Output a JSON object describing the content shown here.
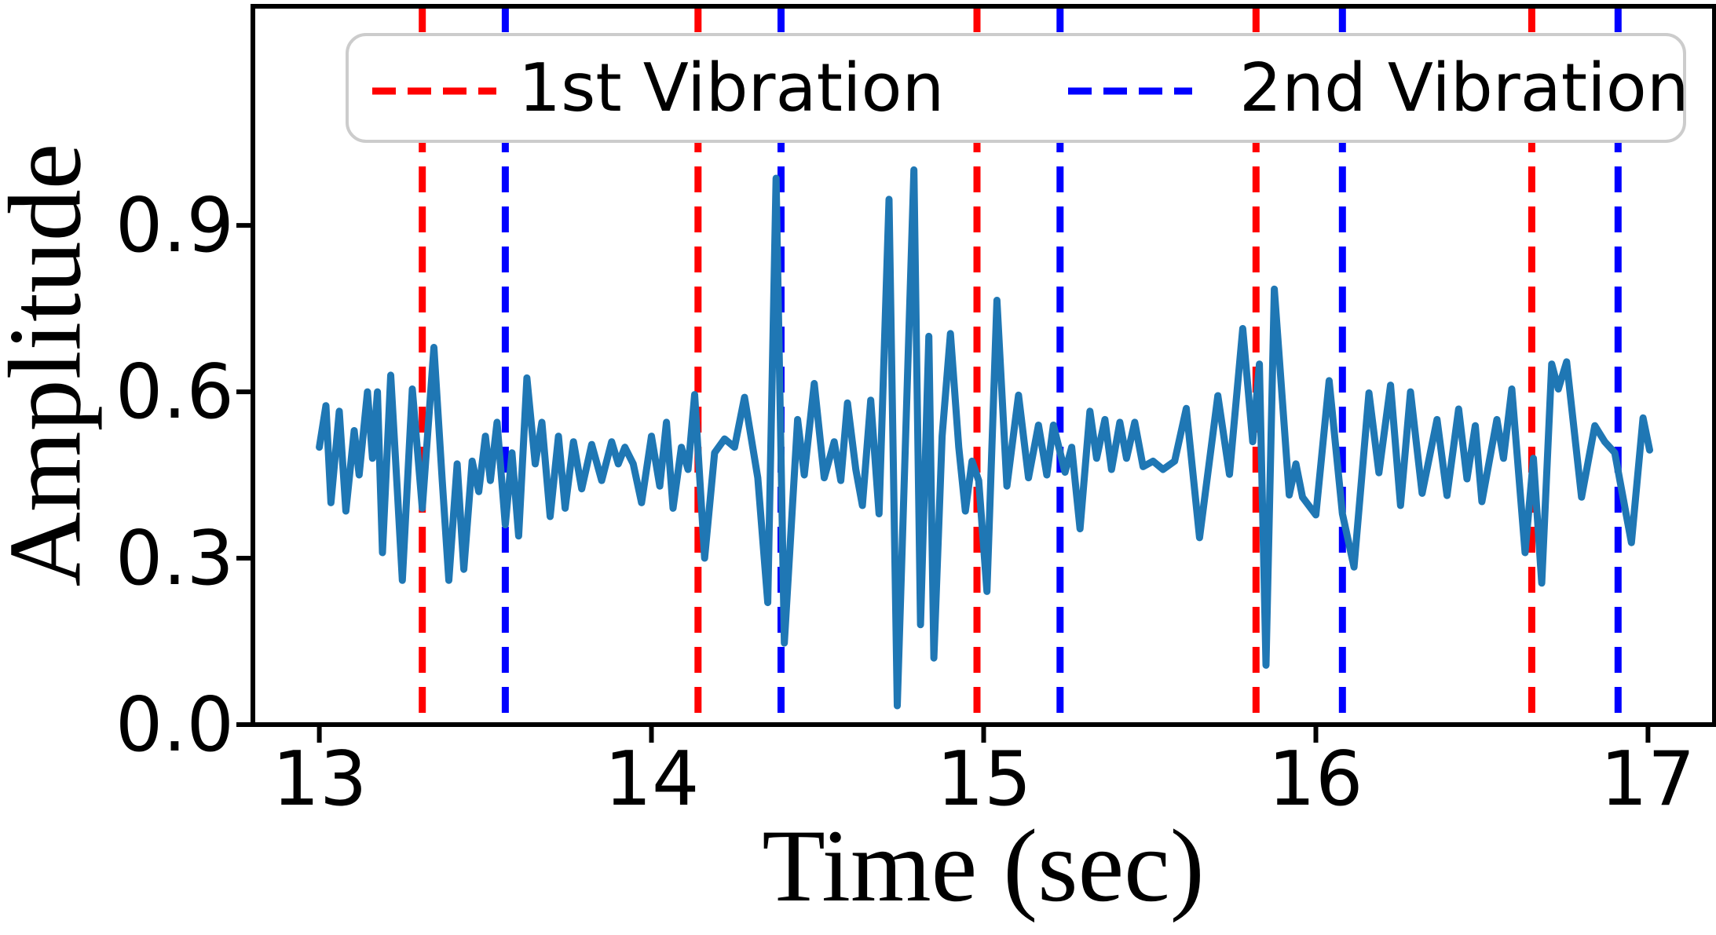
{
  "figure": {
    "background": "#ffffff",
    "text_color": "#000000",
    "spine_color": "#000000"
  },
  "legend": {
    "position": "upper center",
    "border_color": "#cccccc",
    "entries": [
      {
        "label": "1st Vibration",
        "color": "#ff0000"
      },
      {
        "label": "2nd Vibration",
        "color": "#0000ff"
      }
    ]
  },
  "chart_data": {
    "type": "line",
    "title": "",
    "xlabel": "Time (sec)",
    "ylabel": "Amplitude",
    "xlim": [
      12.8,
      17.2
    ],
    "ylim": [
      0,
      1.295
    ],
    "xticks": [
      13,
      14,
      15,
      16,
      17
    ],
    "xticklabels": [
      "13",
      "14",
      "15",
      "16",
      "17"
    ],
    "yticks": [
      0.0,
      0.3,
      0.6,
      0.9
    ],
    "yticklabels": [
      "0.0",
      "0.3",
      "0.6",
      "0.9"
    ],
    "grid": false,
    "signal_color": "#1f77b4",
    "vlines": [
      {
        "name": "1st Vibration",
        "color": "#ff0000",
        "times": [
          13.31,
          14.14,
          14.98,
          15.82,
          16.65
        ]
      },
      {
        "name": "2nd Vibration",
        "color": "#0000ff",
        "times": [
          13.56,
          14.39,
          15.23,
          16.08,
          16.91
        ]
      }
    ],
    "series": [
      {
        "name": "signal",
        "points": [
          [
            13.0,
            0.5
          ],
          [
            13.02,
            0.575
          ],
          [
            13.035,
            0.4
          ],
          [
            13.06,
            0.565
          ],
          [
            13.08,
            0.385
          ],
          [
            13.105,
            0.53
          ],
          [
            13.12,
            0.45
          ],
          [
            13.145,
            0.6
          ],
          [
            13.16,
            0.48
          ],
          [
            13.175,
            0.6
          ],
          [
            13.19,
            0.31
          ],
          [
            13.215,
            0.63
          ],
          [
            13.235,
            0.42
          ],
          [
            13.25,
            0.26
          ],
          [
            13.28,
            0.605
          ],
          [
            13.31,
            0.39
          ],
          [
            13.345,
            0.68
          ],
          [
            13.37,
            0.44
          ],
          [
            13.39,
            0.26
          ],
          [
            13.415,
            0.47
          ],
          [
            13.435,
            0.28
          ],
          [
            13.46,
            0.475
          ],
          [
            13.48,
            0.42
          ],
          [
            13.5,
            0.52
          ],
          [
            13.515,
            0.44
          ],
          [
            13.535,
            0.545
          ],
          [
            13.56,
            0.36
          ],
          [
            13.58,
            0.49
          ],
          [
            13.6,
            0.34
          ],
          [
            13.625,
            0.625
          ],
          [
            13.65,
            0.47
          ],
          [
            13.67,
            0.545
          ],
          [
            13.695,
            0.375
          ],
          [
            13.72,
            0.52
          ],
          [
            13.74,
            0.39
          ],
          [
            13.765,
            0.51
          ],
          [
            13.79,
            0.425
          ],
          [
            13.82,
            0.505
          ],
          [
            13.85,
            0.44
          ],
          [
            13.88,
            0.51
          ],
          [
            13.9,
            0.47
          ],
          [
            13.92,
            0.5
          ],
          [
            13.945,
            0.47
          ],
          [
            13.97,
            0.4
          ],
          [
            14.0,
            0.52
          ],
          [
            14.025,
            0.43
          ],
          [
            14.045,
            0.545
          ],
          [
            14.065,
            0.39
          ],
          [
            14.09,
            0.5
          ],
          [
            14.11,
            0.46
          ],
          [
            14.13,
            0.595
          ],
          [
            14.16,
            0.3
          ],
          [
            14.19,
            0.49
          ],
          [
            14.22,
            0.515
          ],
          [
            14.25,
            0.5
          ],
          [
            14.28,
            0.59
          ],
          [
            14.32,
            0.445
          ],
          [
            14.35,
            0.22
          ],
          [
            14.375,
            0.985
          ],
          [
            14.4,
            0.147
          ],
          [
            14.425,
            0.4
          ],
          [
            14.44,
            0.55
          ],
          [
            14.46,
            0.45
          ],
          [
            14.49,
            0.615
          ],
          [
            14.52,
            0.445
          ],
          [
            14.55,
            0.51
          ],
          [
            14.57,
            0.44
          ],
          [
            14.59,
            0.58
          ],
          [
            14.615,
            0.46
          ],
          [
            14.635,
            0.395
          ],
          [
            14.66,
            0.585
          ],
          [
            14.685,
            0.38
          ],
          [
            14.715,
            0.947
          ],
          [
            14.74,
            0.034
          ],
          [
            14.79,
            1.0
          ],
          [
            14.81,
            0.18
          ],
          [
            14.835,
            0.7
          ],
          [
            14.85,
            0.12
          ],
          [
            14.875,
            0.52
          ],
          [
            14.9,
            0.705
          ],
          [
            14.925,
            0.5
          ],
          [
            14.945,
            0.385
          ],
          [
            14.965,
            0.475
          ],
          [
            14.985,
            0.44
          ],
          [
            15.01,
            0.24
          ],
          [
            15.04,
            0.765
          ],
          [
            15.07,
            0.43
          ],
          [
            15.105,
            0.594
          ],
          [
            15.135,
            0.445
          ],
          [
            15.165,
            0.54
          ],
          [
            15.19,
            0.45
          ],
          [
            15.21,
            0.54
          ],
          [
            15.245,
            0.455
          ],
          [
            15.265,
            0.5
          ],
          [
            15.29,
            0.353
          ],
          [
            15.32,
            0.565
          ],
          [
            15.34,
            0.48
          ],
          [
            15.365,
            0.55
          ],
          [
            15.385,
            0.46
          ],
          [
            15.41,
            0.545
          ],
          [
            15.43,
            0.48
          ],
          [
            15.455,
            0.545
          ],
          [
            15.48,
            0.465
          ],
          [
            15.51,
            0.475
          ],
          [
            15.54,
            0.46
          ],
          [
            15.575,
            0.475
          ],
          [
            15.61,
            0.57
          ],
          [
            15.65,
            0.337
          ],
          [
            15.705,
            0.593
          ],
          [
            15.74,
            0.451
          ],
          [
            15.78,
            0.714
          ],
          [
            15.81,
            0.51
          ],
          [
            15.83,
            0.65
          ],
          [
            15.85,
            0.107
          ],
          [
            15.875,
            0.785
          ],
          [
            15.92,
            0.414
          ],
          [
            15.94,
            0.47
          ],
          [
            15.96,
            0.41
          ],
          [
            16.0,
            0.378
          ],
          [
            16.04,
            0.62
          ],
          [
            16.08,
            0.38
          ],
          [
            16.115,
            0.284
          ],
          [
            16.16,
            0.598
          ],
          [
            16.19,
            0.454
          ],
          [
            16.225,
            0.612
          ],
          [
            16.255,
            0.395
          ],
          [
            16.285,
            0.6
          ],
          [
            16.32,
            0.417
          ],
          [
            16.365,
            0.55
          ],
          [
            16.395,
            0.413
          ],
          [
            16.43,
            0.569
          ],
          [
            16.455,
            0.443
          ],
          [
            16.48,
            0.539
          ],
          [
            16.5,
            0.402
          ],
          [
            16.545,
            0.55
          ],
          [
            16.565,
            0.48
          ],
          [
            16.59,
            0.605
          ],
          [
            16.63,
            0.31
          ],
          [
            16.655,
            0.48
          ],
          [
            16.68,
            0.255
          ],
          [
            16.71,
            0.65
          ],
          [
            16.73,
            0.605
          ],
          [
            16.755,
            0.654
          ],
          [
            16.8,
            0.41
          ],
          [
            16.84,
            0.539
          ],
          [
            16.87,
            0.51
          ],
          [
            16.9,
            0.49
          ],
          [
            16.95,
            0.328
          ],
          [
            16.985,
            0.553
          ],
          [
            17.005,
            0.495
          ]
        ]
      }
    ],
    "legend_position": "upper center"
  }
}
